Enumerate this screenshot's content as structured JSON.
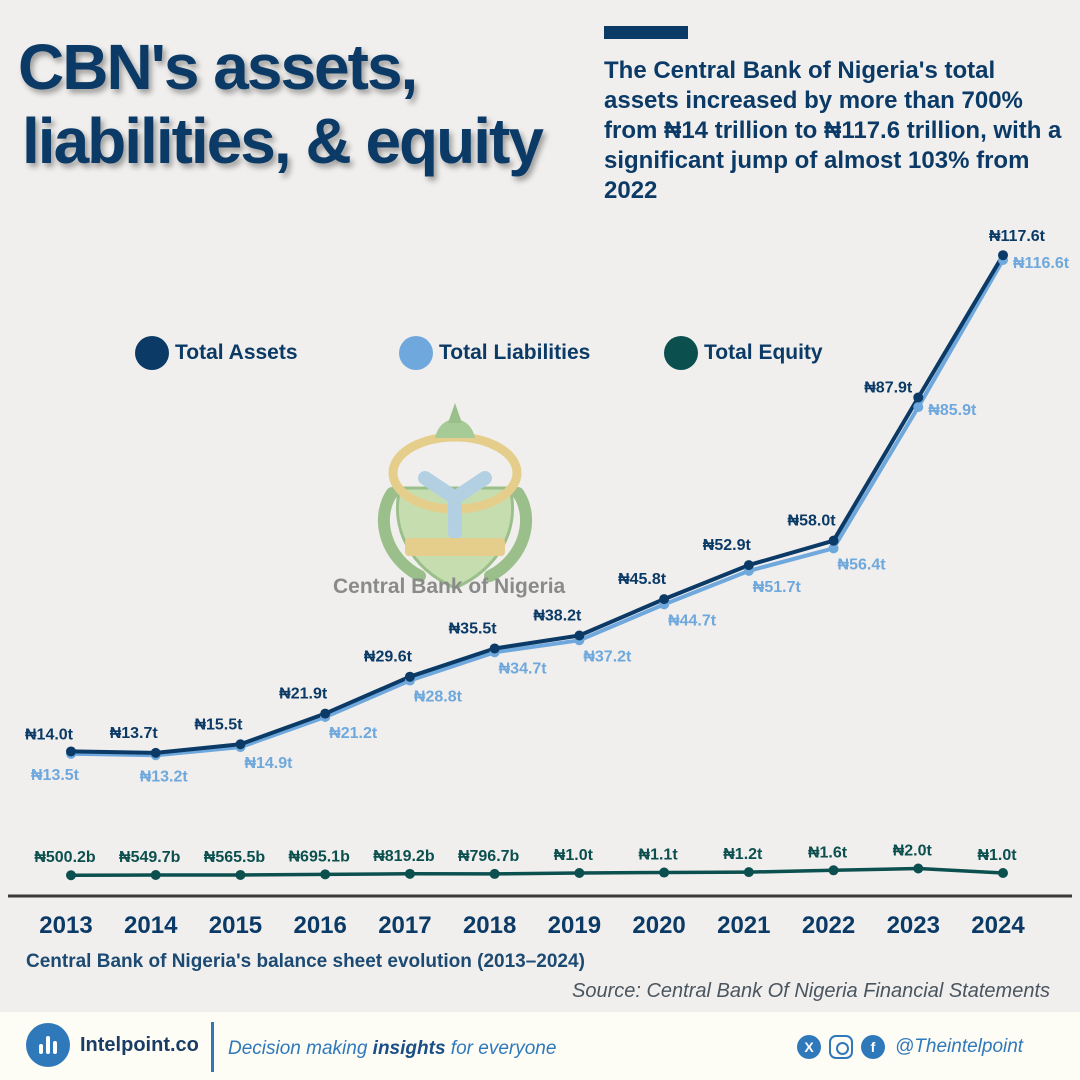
{
  "header": {
    "title_line1": "CBN's assets,",
    "title_line2": "liabilities, & equity",
    "subtitle": "The Central Bank of Nigeria's total assets increased by more than 700% from ₦14 trillion to ₦117.6 trillion, with a significant jump of almost 103% from 2022"
  },
  "logo": {
    "icon": "cbn-seal-icon",
    "text": "Central Bank of Nigeria"
  },
  "colors": {
    "assets": "#0b3a66",
    "liabilities": "#6fa8dc",
    "equity": "#0c4f4f",
    "baseline": "#3a3a3a"
  },
  "chart_data": {
    "type": "line",
    "categories": [
      "2013",
      "2014",
      "2015",
      "2016",
      "2017",
      "2018",
      "2019",
      "2020",
      "2021",
      "2022",
      "2023",
      "2024"
    ],
    "series": [
      {
        "name": "Total Assets",
        "color": "#0b3a66",
        "values": [
          14.0,
          13.7,
          15.5,
          21.9,
          29.6,
          35.5,
          38.2,
          45.8,
          52.9,
          58.0,
          87.9,
          117.6
        ],
        "labels": [
          "₦14.0t",
          "₦13.7t",
          "₦15.5t",
          "₦21.9t",
          "₦29.6t",
          "₦35.5t",
          "₦38.2t",
          "₦45.8t",
          "₦52.9t",
          "₦58.0t",
          "₦87.9t",
          "₦117.6t"
        ]
      },
      {
        "name": "Total Liabilities",
        "color": "#6fa8dc",
        "values": [
          13.5,
          13.2,
          14.9,
          21.2,
          28.8,
          34.7,
          37.2,
          44.7,
          51.7,
          56.4,
          85.9,
          116.6
        ],
        "labels": [
          "₦13.5t",
          "₦13.2t",
          "₦14.9t",
          "₦21.2t",
          "₦28.8t",
          "₦34.7t",
          "₦37.2t",
          "₦44.7t",
          "₦51.7t",
          "₦56.4t",
          "₦85.9t",
          "₦116.6t"
        ]
      },
      {
        "name": "Total Equity",
        "color": "#0c4f4f",
        "values": [
          0.5002,
          0.5497,
          0.5655,
          0.6951,
          0.8192,
          0.7967,
          1.0,
          1.1,
          1.2,
          1.6,
          2.0,
          1.0
        ],
        "labels": [
          "₦500.2b",
          "₦549.7b",
          "₦565.5b",
          "₦695.1b",
          "₦819.2b",
          "₦796.7b",
          "₦1.0t",
          "₦1.1t",
          "₦1.2t",
          "₦1.6t",
          "₦2.0t",
          "₦1.0t"
        ]
      }
    ],
    "caption": "Central Bank of Nigeria's balance sheet evolution (2013–2024)",
    "source": "Source: Central Bank Of Nigeria Financial Statements",
    "legend_position": "top"
  },
  "footer": {
    "brand_icon": "bar-chart-icon",
    "brand": "Intelpoint.co",
    "tagline_pre": "Decision making ",
    "tagline_bold": "insights",
    "tagline_post": " for everyone",
    "social_icons": [
      "x-icon",
      "instagram-icon",
      "facebook-icon"
    ],
    "handle": "@Theintelpoint"
  }
}
